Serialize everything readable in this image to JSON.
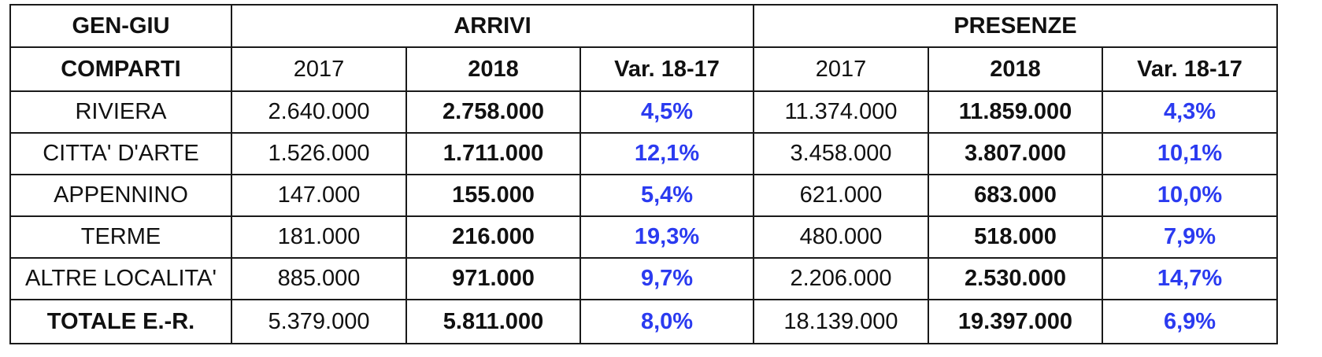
{
  "title": "GEN-GIU",
  "groups": {
    "arrivi": "ARRIVI",
    "presenze": "PRESENZE"
  },
  "subheader": {
    "comparti": "COMPARTI",
    "arrivi_2017": "2017",
    "arrivi_2018": "2018",
    "arrivi_var": "Var. 18-17",
    "presenze_2017": "2017",
    "presenze_2018": "2018",
    "presenze_var": "Var. 18-17"
  },
  "rows": [
    {
      "label": "RIVIERA",
      "a2017": "2.640.000",
      "a2018": "2.758.000",
      "avar": "4,5%",
      "p2017": "11.374.000",
      "p2018": "11.859.000",
      "pvar": "4,3%"
    },
    {
      "label": "CITTA' D'ARTE",
      "a2017": "1.526.000",
      "a2018": "1.711.000",
      "avar": "12,1%",
      "p2017": "3.458.000",
      "p2018": "3.807.000",
      "pvar": "10,1%"
    },
    {
      "label": "APPENNINO",
      "a2017": "147.000",
      "a2018": "155.000",
      "avar": "5,4%",
      "p2017": "621.000",
      "p2018": "683.000",
      "pvar": "10,0%"
    },
    {
      "label": "TERME",
      "a2017": "181.000",
      "a2018": "216.000",
      "avar": "19,3%",
      "p2017": "480.000",
      "p2018": "518.000",
      "pvar": "7,9%"
    },
    {
      "label": "ALTRE LOCALITA'",
      "a2017": "885.000",
      "a2018": "971.000",
      "avar": "9,7%",
      "p2017": "2.206.000",
      "p2018": "2.530.000",
      "pvar": "14,7%"
    },
    {
      "label": "TOTALE E.-R.",
      "a2017": "5.379.000",
      "a2018": "5.811.000",
      "avar": "8,0%",
      "p2017": "18.139.000",
      "p2018": "19.397.000",
      "pvar": "6,9%"
    }
  ],
  "colors": {
    "variation_text": "#2b3bf0",
    "border": "#1a1a1a"
  }
}
